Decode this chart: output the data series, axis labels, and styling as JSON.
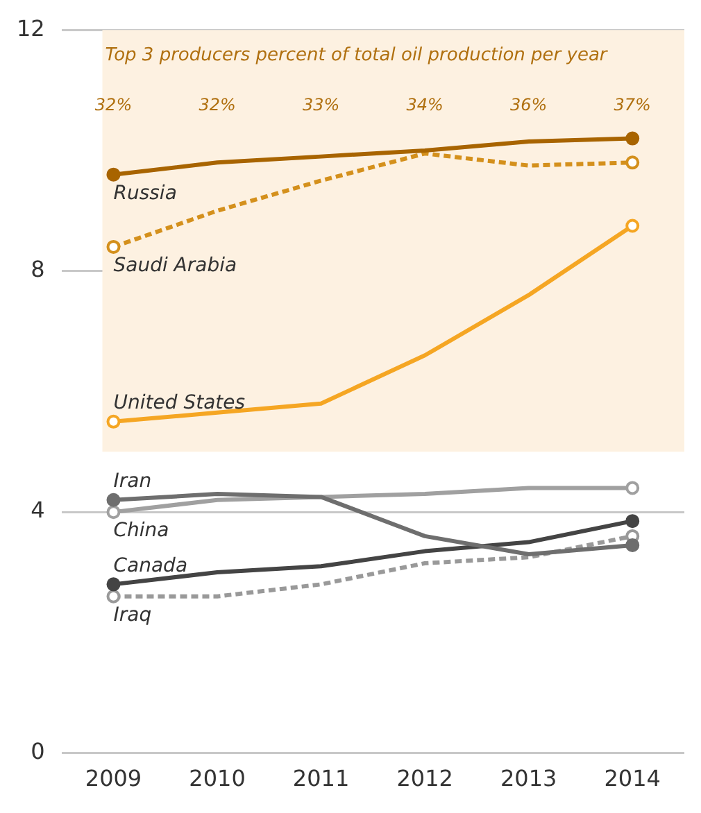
{
  "chart_data": {
    "type": "line",
    "categories": [
      "2009",
      "2010",
      "2011",
      "2012",
      "2013",
      "2014"
    ],
    "series": [
      {
        "name": "Russia",
        "color": "#a86400",
        "values": [
          9.6,
          9.8,
          9.9,
          10.0,
          10.15,
          10.2
        ]
      },
      {
        "name": "Saudi Arabia",
        "color": "#d4901c",
        "line_style": "dashed",
        "values": [
          8.4,
          9.0,
          9.5,
          9.95,
          9.75,
          9.8
        ]
      },
      {
        "name": "United States",
        "color": "#f5a623",
        "values": [
          5.5,
          5.65,
          5.8,
          6.6,
          7.6,
          8.75
        ]
      },
      {
        "name": "Iran",
        "color": "#6e6e6e",
        "values": [
          4.2,
          4.3,
          4.25,
          3.6,
          3.3,
          3.45
        ]
      },
      {
        "name": "China",
        "color": "#a0a0a0",
        "values": [
          4.0,
          4.2,
          4.25,
          4.3,
          4.4,
          4.4
        ]
      },
      {
        "name": "Canada",
        "color": "#444444",
        "values": [
          2.8,
          3.0,
          3.1,
          3.35,
          3.5,
          3.85
        ]
      },
      {
        "name": "Iraq",
        "color": "#999999",
        "line_style": "dashed",
        "values": [
          2.6,
          2.6,
          2.8,
          3.15,
          3.25,
          3.6
        ]
      }
    ],
    "ylim": [
      0,
      12
    ],
    "yticks": [
      0,
      4,
      8,
      12
    ],
    "grid": "y",
    "legend": false,
    "bands": [
      {
        "axis": "y",
        "from": 5,
        "to": 12,
        "label": "Top 3 producers percent of total oil production per year",
        "color": "#fdf1e1"
      }
    ],
    "annotations": [
      "32%",
      "32%",
      "33%",
      "34%",
      "36%",
      "37%"
    ]
  }
}
